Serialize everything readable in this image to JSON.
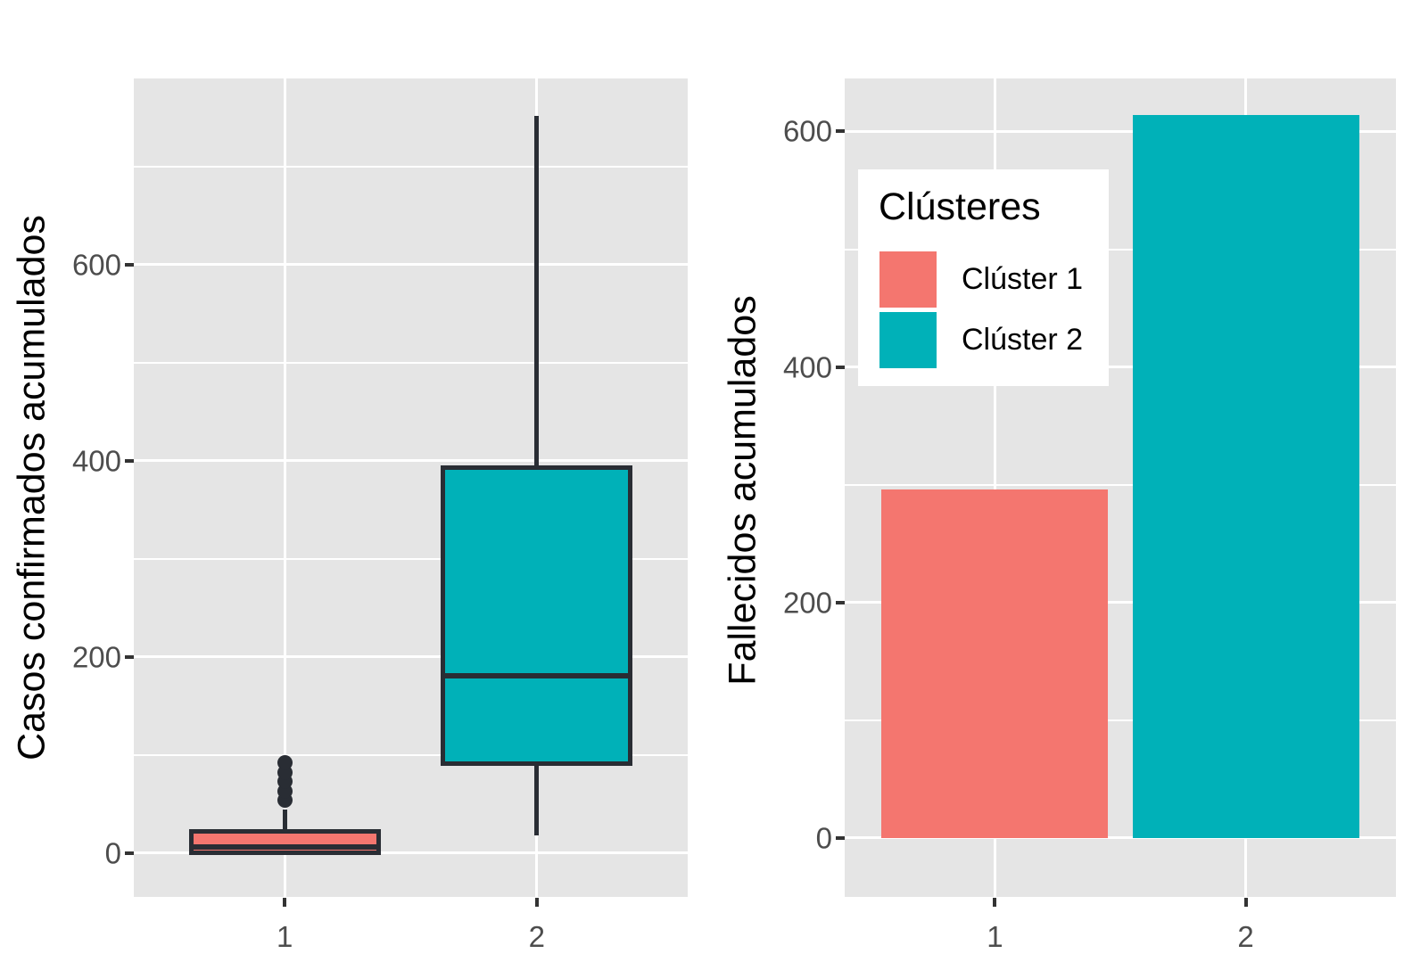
{
  "chart_data": [
    {
      "type": "boxplot",
      "title": "",
      "xlabel": "",
      "ylabel": "Casos confirmados acumulados",
      "categories": [
        "1",
        "2"
      ],
      "yticks": [
        0,
        200,
        400,
        600
      ],
      "ylim": [
        -45,
        790
      ],
      "grid": "major-and-minor-white-on-gray",
      "series": [
        {
          "name": "Clúster 1",
          "category": "1",
          "color": "#F4766F",
          "whisker_low": 0,
          "q1": 0,
          "median": 6,
          "q3": 22,
          "whisker_high": 44,
          "outliers": [
            54,
            63,
            73,
            82,
            92
          ]
        },
        {
          "name": "Clúster 2",
          "category": "2",
          "color": "#00B1B8",
          "whisker_low": 18,
          "q1": 91,
          "median": 181,
          "q3": 393,
          "whisker_high": 752,
          "outliers": []
        }
      ]
    },
    {
      "type": "bar",
      "title": "",
      "xlabel": "",
      "ylabel": "Fallecidos acumulados",
      "categories": [
        "1",
        "2"
      ],
      "yticks": [
        0,
        200,
        400,
        600
      ],
      "ylim": [
        -50,
        645
      ],
      "grid": "major-and-minor-white-on-gray",
      "series": [
        {
          "name": "Clúster 1",
          "category": "1",
          "color": "#F4766F",
          "value": 296
        },
        {
          "name": "Clúster 2",
          "category": "2",
          "color": "#00B1B8",
          "value": 614
        }
      ],
      "legend": {
        "title": "Clústeres",
        "position": "inside-top-left",
        "entries": [
          "Clúster 1",
          "Clúster 2"
        ]
      }
    }
  ],
  "style": {
    "panel_background": "#E5E5E5",
    "gridline_color": "#FFFFFF",
    "box_stroke_color": "#292D34",
    "tick_label_color": "#4D4D4D",
    "axis_title_color": "#000000"
  }
}
